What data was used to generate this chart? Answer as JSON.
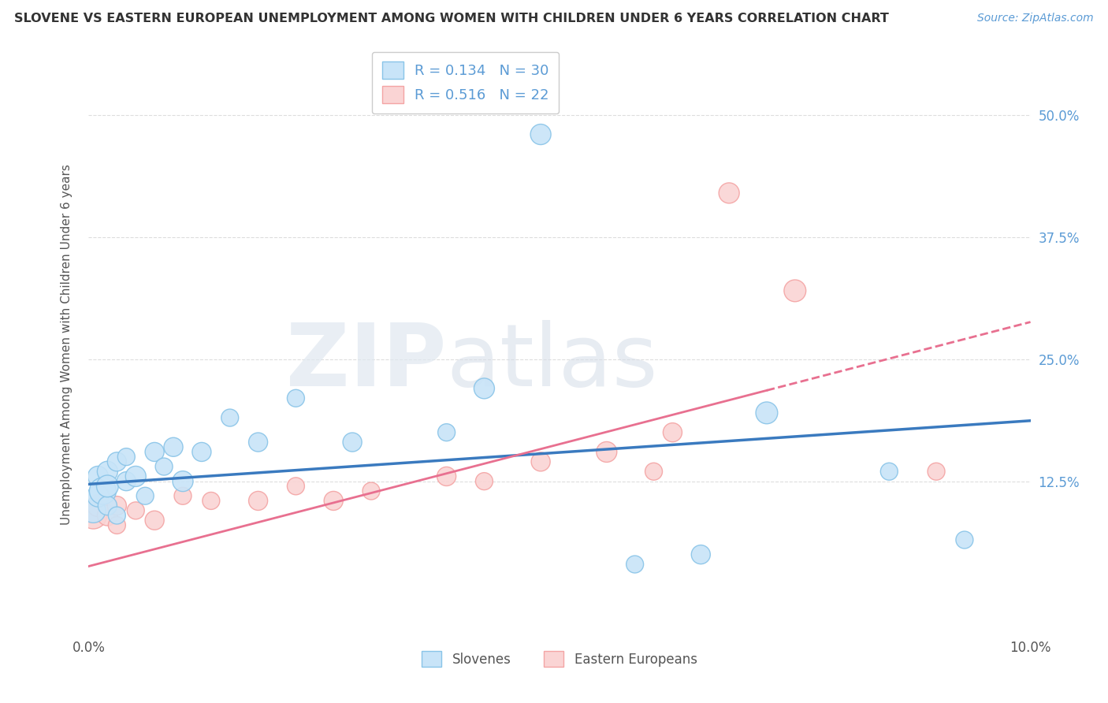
{
  "title": "SLOVENE VS EASTERN EUROPEAN UNEMPLOYMENT AMONG WOMEN WITH CHILDREN UNDER 6 YEARS CORRELATION CHART",
  "source": "Source: ZipAtlas.com",
  "ylabel": "Unemployment Among Women with Children Under 6 years",
  "xlim": [
    0.0,
    0.1
  ],
  "ylim": [
    -0.03,
    0.56
  ],
  "ytick_labels": [
    "12.5%",
    "25.0%",
    "37.5%",
    "50.0%"
  ],
  "yticks": [
    0.125,
    0.25,
    0.375,
    0.5
  ],
  "blue_color": "#89c4e8",
  "pink_color": "#f4a4a4",
  "blue_fill": "#c8e4f8",
  "pink_fill": "#fad4d4",
  "blue_line_color": "#3a7abf",
  "pink_line_color": "#e87090",
  "R_blue": 0.134,
  "N_blue": 30,
  "R_pink": 0.516,
  "N_pink": 22,
  "slovenes_x": [
    0.0005,
    0.001,
    0.001,
    0.0015,
    0.002,
    0.002,
    0.002,
    0.003,
    0.003,
    0.004,
    0.004,
    0.005,
    0.006,
    0.007,
    0.008,
    0.009,
    0.01,
    0.012,
    0.015,
    0.018,
    0.022,
    0.028,
    0.038,
    0.042,
    0.048,
    0.058,
    0.065,
    0.072,
    0.085,
    0.093
  ],
  "slovenes_y": [
    0.095,
    0.11,
    0.13,
    0.115,
    0.135,
    0.1,
    0.12,
    0.145,
    0.09,
    0.125,
    0.15,
    0.13,
    0.11,
    0.155,
    0.14,
    0.16,
    0.125,
    0.155,
    0.19,
    0.165,
    0.21,
    0.165,
    0.175,
    0.22,
    0.48,
    0.04,
    0.05,
    0.195,
    0.135,
    0.065
  ],
  "slovenes_size": [
    500,
    400,
    350,
    600,
    350,
    300,
    400,
    300,
    250,
    300,
    250,
    350,
    250,
    300,
    250,
    300,
    350,
    300,
    250,
    300,
    250,
    300,
    250,
    350,
    350,
    250,
    300,
    400,
    250,
    250
  ],
  "eastern_x": [
    0.0005,
    0.001,
    0.002,
    0.003,
    0.003,
    0.005,
    0.007,
    0.01,
    0.013,
    0.018,
    0.022,
    0.026,
    0.03,
    0.038,
    0.042,
    0.048,
    0.055,
    0.06,
    0.062,
    0.068,
    0.075,
    0.09
  ],
  "eastern_y": [
    0.09,
    0.1,
    0.09,
    0.1,
    0.08,
    0.095,
    0.085,
    0.11,
    0.105,
    0.105,
    0.12,
    0.105,
    0.115,
    0.13,
    0.125,
    0.145,
    0.155,
    0.135,
    0.175,
    0.42,
    0.32,
    0.135
  ],
  "eastern_size": [
    600,
    400,
    350,
    300,
    250,
    250,
    300,
    250,
    250,
    300,
    250,
    300,
    250,
    300,
    250,
    300,
    350,
    250,
    300,
    350,
    400,
    250
  ]
}
